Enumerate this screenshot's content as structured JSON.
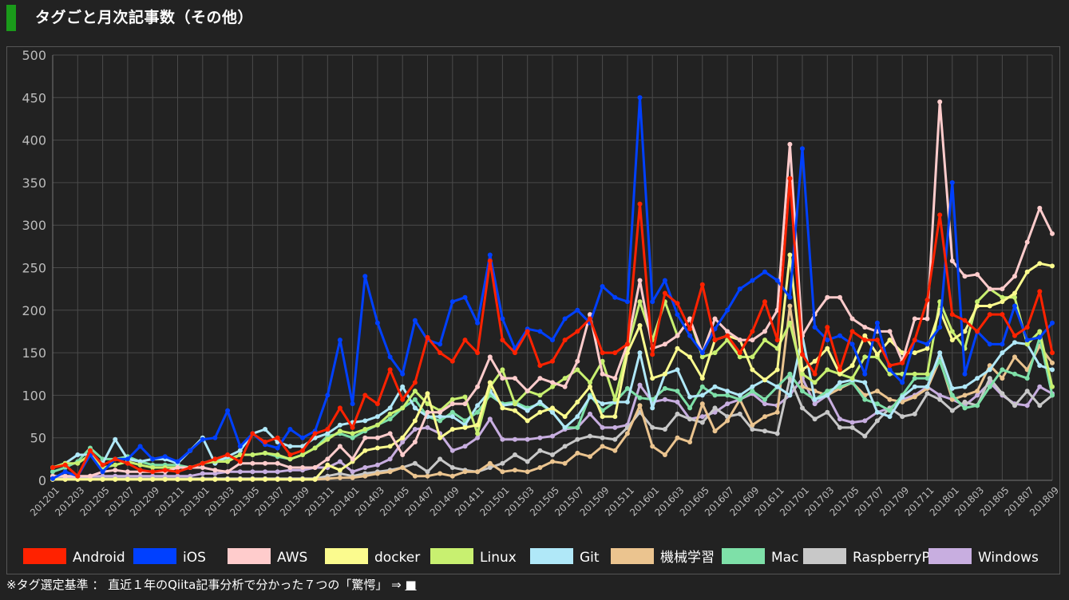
{
  "page": {
    "title": "タグごと月次記事数（その他）",
    "footer_note": "※タグ選定基準 ： 直近１年のQiita記事分析で分かった７つの「驚愕」 ⇒",
    "footer_link": "■",
    "accent_color": "#1a9a1a"
  },
  "chart_data": {
    "type": "line",
    "title": "",
    "xlabel": "",
    "ylabel": "",
    "ylim": [
      0,
      500
    ],
    "yticks": [
      0,
      50,
      100,
      150,
      200,
      250,
      300,
      350,
      400,
      450,
      500
    ],
    "grid": true,
    "legend_position": "bottom",
    "x": [
      "201201",
      "201202",
      "201203",
      "201204",
      "201205",
      "201206",
      "201207",
      "201208",
      "201209",
      "201210",
      "201211",
      "201212",
      "201301",
      "201302",
      "201303",
      "201304",
      "201305",
      "201306",
      "201307",
      "201308",
      "201309",
      "201310",
      "201311",
      "201312",
      "201401",
      "201402",
      "201403",
      "201404",
      "201405",
      "201406",
      "201407",
      "201408",
      "201409",
      "201410",
      "201411",
      "201412",
      "201501",
      "201502",
      "201503",
      "201504",
      "201505",
      "201506",
      "201507",
      "201508",
      "201509",
      "201510",
      "201511",
      "201512",
      "201601",
      "201602",
      "201603",
      "201604",
      "201605",
      "201606",
      "201607",
      "201608",
      "201609",
      "201610",
      "201611",
      "201612",
      "201701",
      "201702",
      "201703",
      "201704",
      "201705",
      "201706",
      "201707",
      "201708",
      "201709",
      "201710",
      "201711",
      "201712",
      "201801",
      "201802",
      "201803",
      "201804",
      "201805",
      "201806",
      "201807",
      "201808",
      "201809"
    ],
    "x_tick_labels": [
      "201201",
      "201203",
      "201205",
      "201207",
      "201209",
      "201211",
      "201301",
      "201303",
      "201305",
      "201307",
      "201309",
      "201311",
      "201401",
      "201403",
      "201405",
      "201407",
      "201409",
      "201411",
      "201501",
      "201503",
      "201505",
      "201507",
      "201509",
      "201511",
      "201601",
      "201603",
      "201605",
      "201607",
      "201609",
      "201611",
      "201701",
      "201703",
      "201705",
      "201707",
      "201709",
      "201711",
      "201801",
      "201803",
      "201805",
      "201807",
      "201809"
    ],
    "series": [
      {
        "name": "Windows",
        "color": "#c8aee0",
        "values": [
          5,
          5,
          3,
          5,
          5,
          5,
          5,
          5,
          5,
          5,
          5,
          5,
          8,
          8,
          10,
          10,
          10,
          10,
          10,
          12,
          12,
          15,
          15,
          22,
          10,
          15,
          18,
          25,
          45,
          60,
          62,
          55,
          35,
          40,
          50,
          72,
          48,
          48,
          48,
          50,
          52,
          60,
          62,
          78,
          62,
          62,
          65,
          112,
          92,
          95,
          92,
          72,
          75,
          80,
          90,
          95,
          102,
          90,
          88,
          100,
          120,
          90,
          100,
          72,
          68,
          70,
          80,
          85,
          95,
          100,
          110,
          100,
          95,
          88,
          100,
          115,
          100,
          90,
          88,
          110,
          102
        ]
      },
      {
        "name": "RaspberryPi",
        "color": "#c8c8c8",
        "values": [
          2,
          2,
          2,
          2,
          2,
          2,
          2,
          2,
          2,
          2,
          2,
          2,
          2,
          2,
          2,
          2,
          2,
          2,
          2,
          2,
          2,
          2,
          5,
          8,
          5,
          8,
          10,
          12,
          15,
          20,
          10,
          25,
          15,
          12,
          10,
          15,
          20,
          30,
          22,
          35,
          30,
          40,
          48,
          52,
          50,
          48,
          62,
          80,
          62,
          60,
          78,
          72,
          68,
          85,
          75,
          78,
          60,
          58,
          55,
          120,
          85,
          72,
          80,
          62,
          62,
          52,
          70,
          85,
          75,
          78,
          102,
          95,
          82,
          92,
          88,
          120,
          102,
          88,
          105,
          88,
          100
        ]
      },
      {
        "name": "機械学習",
        "color": "#ebc48f",
        "values": [
          1,
          1,
          1,
          1,
          1,
          1,
          1,
          1,
          1,
          1,
          1,
          1,
          1,
          1,
          1,
          1,
          1,
          1,
          1,
          1,
          1,
          1,
          2,
          3,
          3,
          5,
          8,
          10,
          15,
          5,
          5,
          8,
          5,
          10,
          10,
          20,
          10,
          12,
          10,
          15,
          22,
          20,
          32,
          28,
          40,
          35,
          55,
          88,
          40,
          30,
          50,
          45,
          90,
          58,
          70,
          95,
          65,
          75,
          80,
          205,
          110,
          105,
          100,
          108,
          115,
          100,
          105,
          95,
          92,
          98,
          108,
          142,
          95,
          100,
          105,
          135,
          120,
          145,
          130,
          158,
          138
        ]
      },
      {
        "name": "Mac",
        "color": "#7ee0a8",
        "values": [
          10,
          15,
          22,
          38,
          25,
          25,
          28,
          22,
          18,
          18,
          18,
          15,
          20,
          25,
          25,
          30,
          30,
          32,
          28,
          25,
          30,
          38,
          52,
          55,
          50,
          58,
          65,
          72,
          85,
          95,
          75,
          70,
          80,
          70,
          80,
          100,
          90,
          92,
          85,
          90,
          80,
          62,
          62,
          100,
          82,
          92,
          108,
          97,
          95,
          108,
          105,
          85,
          110,
          100,
          100,
          95,
          105,
          95,
          110,
          125,
          105,
          95,
          105,
          110,
          115,
          95,
          90,
          82,
          100,
          120,
          120,
          140,
          100,
          85,
          88,
          110,
          130,
          125,
          120,
          168,
          100
        ]
      },
      {
        "name": "Git",
        "color": "#b0e8f8",
        "values": [
          15,
          20,
          30,
          30,
          20,
          48,
          25,
          22,
          25,
          25,
          20,
          35,
          50,
          20,
          28,
          35,
          55,
          60,
          45,
          40,
          40,
          50,
          55,
          65,
          68,
          70,
          75,
          85,
          110,
          85,
          75,
          75,
          75,
          65,
          88,
          105,
          88,
          90,
          82,
          92,
          80,
          62,
          75,
          98,
          90,
          92,
          92,
          150,
          85,
          125,
          130,
          98,
          100,
          110,
          105,
          100,
          110,
          118,
          110,
          100,
          170,
          95,
          100,
          115,
          118,
          115,
          80,
          75,
          98,
          110,
          110,
          150,
          108,
          110,
          120,
          130,
          150,
          162,
          160,
          135,
          130
        ]
      },
      {
        "name": "Linux",
        "color": "#c8f070",
        "values": [
          15,
          20,
          20,
          30,
          15,
          18,
          22,
          18,
          15,
          15,
          15,
          15,
          20,
          22,
          22,
          30,
          30,
          32,
          30,
          25,
          30,
          38,
          48,
          58,
          55,
          60,
          65,
          78,
          85,
          105,
          90,
          82,
          95,
          98,
          55,
          110,
          130,
          90,
          105,
          100,
          110,
          120,
          130,
          115,
          140,
          95,
          155,
          210,
          165,
          210,
          170,
          190,
          145,
          150,
          165,
          145,
          145,
          165,
          155,
          185,
          125,
          115,
          130,
          125,
          120,
          145,
          145,
          125,
          125,
          125,
          125,
          210,
          175,
          155,
          210,
          225,
          215,
          215,
          160,
          175,
          110
        ]
      },
      {
        "name": "docker",
        "color": "#fbfb8e",
        "values": [
          1,
          1,
          1,
          1,
          1,
          1,
          1,
          1,
          1,
          1,
          1,
          1,
          1,
          1,
          1,
          1,
          1,
          1,
          1,
          1,
          1,
          1,
          18,
          12,
          22,
          35,
          38,
          40,
          50,
          70,
          102,
          50,
          60,
          62,
          65,
          115,
          85,
          82,
          70,
          80,
          85,
          75,
          92,
          110,
          75,
          75,
          150,
          182,
          120,
          125,
          155,
          145,
          120,
          165,
          170,
          165,
          130,
          118,
          130,
          265,
          130,
          140,
          155,
          125,
          135,
          170,
          148,
          165,
          150,
          150,
          155,
          200,
          165,
          175,
          205,
          205,
          210,
          220,
          245,
          255,
          252
        ]
      },
      {
        "name": "AWS",
        "color": "#ffcccc",
        "values": [
          5,
          5,
          5,
          5,
          10,
          12,
          10,
          10,
          10,
          10,
          15,
          15,
          15,
          12,
          10,
          20,
          20,
          20,
          20,
          15,
          15,
          15,
          25,
          40,
          25,
          50,
          50,
          55,
          30,
          45,
          80,
          80,
          90,
          90,
          110,
          145,
          120,
          120,
          105,
          120,
          115,
          110,
          140,
          195,
          125,
          120,
          160,
          235,
          155,
          160,
          170,
          190,
          150,
          190,
          175,
          165,
          165,
          175,
          200,
          395,
          170,
          195,
          215,
          215,
          190,
          180,
          175,
          175,
          140,
          190,
          190,
          445,
          258,
          240,
          242,
          225,
          225,
          240,
          280,
          320,
          290
        ]
      },
      {
        "name": "iOS",
        "color": "#0040ff",
        "values": [
          2,
          10,
          5,
          30,
          10,
          25,
          25,
          40,
          25,
          28,
          22,
          35,
          48,
          50,
          82,
          40,
          55,
          42,
          38,
          60,
          50,
          58,
          100,
          165,
          90,
          240,
          185,
          145,
          125,
          188,
          165,
          160,
          210,
          215,
          185,
          265,
          190,
          155,
          178,
          175,
          165,
          190,
          200,
          185,
          228,
          215,
          210,
          450,
          210,
          235,
          195,
          170,
          150,
          178,
          200,
          225,
          235,
          245,
          235,
          215,
          390,
          180,
          165,
          170,
          160,
          125,
          185,
          130,
          115,
          165,
          160,
          180,
          350,
          125,
          175,
          160,
          160,
          205,
          165,
          168,
          185
        ]
      },
      {
        "name": "Android",
        "color": "#ff2200",
        "values": [
          15,
          18,
          5,
          35,
          18,
          25,
          20,
          12,
          10,
          12,
          10,
          15,
          20,
          25,
          30,
          22,
          55,
          45,
          50,
          30,
          35,
          55,
          60,
          85,
          62,
          100,
          90,
          130,
          95,
          115,
          168,
          150,
          140,
          165,
          150,
          258,
          165,
          150,
          175,
          135,
          140,
          165,
          175,
          190,
          150,
          150,
          160,
          325,
          148,
          220,
          208,
          178,
          230,
          165,
          170,
          150,
          175,
          210,
          165,
          355,
          148,
          125,
          180,
          130,
          175,
          165,
          165,
          135,
          138,
          165,
          212,
          312,
          195,
          188,
          175,
          195,
          195,
          170,
          180,
          222,
          150
        ]
      }
    ]
  }
}
